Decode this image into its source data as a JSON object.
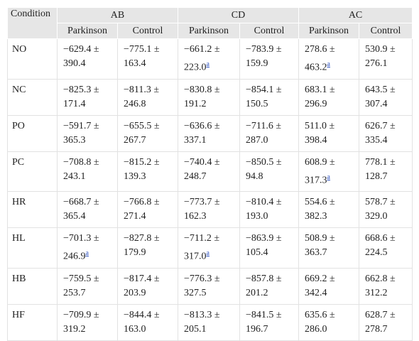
{
  "table": {
    "corner": "Condition",
    "groups": [
      {
        "label": "AB",
        "columns": [
          "Parkinson",
          "Control"
        ]
      },
      {
        "label": "CD",
        "columns": [
          "Parkinson",
          "Control"
        ]
      },
      {
        "label": "AC",
        "columns": [
          "Parkinson",
          "Control"
        ]
      }
    ],
    "rows": [
      {
        "condition": "NO",
        "cells": [
          {
            "text": "−629.4 ± 390.4"
          },
          {
            "text": "−775.1 ± 163.4"
          },
          {
            "text": "−661.2 ± 223.0",
            "sup": "a"
          },
          {
            "text": "−783.9 ± 159.9"
          },
          {
            "text": "278.6 ± 463.2",
            "sup": "a"
          },
          {
            "text": "530.9 ± 276.1"
          }
        ]
      },
      {
        "condition": "NC",
        "cells": [
          {
            "text": "−825.3 ± 171.4"
          },
          {
            "text": "−811.3 ± 246.8"
          },
          {
            "text": "−830.8 ± 191.2"
          },
          {
            "text": "−854.1 ± 150.5"
          },
          {
            "text": "683.1 ± 296.9"
          },
          {
            "text": "643.5 ± 307.4"
          }
        ]
      },
      {
        "condition": "PO",
        "cells": [
          {
            "text": "−591.7 ± 365.3"
          },
          {
            "text": "−655.5 ± 267.7"
          },
          {
            "text": "−636.6 ± 337.1"
          },
          {
            "text": "−711.6 ± 287.0"
          },
          {
            "text": "511.0 ± 398.4"
          },
          {
            "text": "626.7 ± 335.4"
          }
        ]
      },
      {
        "condition": "PC",
        "cells": [
          {
            "text": "−708.8 ± 243.1"
          },
          {
            "text": "−815.2 ± 139.3"
          },
          {
            "text": "−740.4 ± 248.7"
          },
          {
            "text": "−850.5 ± 94.8"
          },
          {
            "text": "608.9 ± 317.3",
            "sup": "a"
          },
          {
            "text": "778.1 ± 128.7"
          }
        ]
      },
      {
        "condition": "HR",
        "cells": [
          {
            "text": "−668.7 ± 365.4"
          },
          {
            "text": "−766.8 ± 271.4"
          },
          {
            "text": "−773.7 ± 162.3"
          },
          {
            "text": "−810.4 ± 193.0"
          },
          {
            "text": "554.6 ± 382.3"
          },
          {
            "text": "578.7 ± 329.0"
          }
        ]
      },
      {
        "condition": "HL",
        "cells": [
          {
            "text": "−701.3 ± 246.9",
            "sup": "a"
          },
          {
            "text": "−827.8 ± 179.9"
          },
          {
            "text": "−711.2 ± 317.0",
            "sup": "a"
          },
          {
            "text": "−863.9 ± 105.4"
          },
          {
            "text": "508.9 ± 363.7"
          },
          {
            "text": "668.6 ± 224.5"
          }
        ]
      },
      {
        "condition": "HB",
        "cells": [
          {
            "text": "−759.5 ± 253.7"
          },
          {
            "text": "−817.4 ± 203.9"
          },
          {
            "text": "−776.3 ± 327.5"
          },
          {
            "text": "−857.8 ± 201.2"
          },
          {
            "text": "669.2 ± 342.4"
          },
          {
            "text": "662.8 ± 312.2"
          }
        ]
      },
      {
        "condition": "HF",
        "cells": [
          {
            "text": "−709.9 ± 319.2"
          },
          {
            "text": "−844.4 ± 163.0"
          },
          {
            "text": "−813.3 ± 205.1"
          },
          {
            "text": "−841.5 ± 196.7"
          },
          {
            "text": "635.6 ± 286.0"
          },
          {
            "text": "628.7 ± 278.7"
          }
        ]
      }
    ]
  }
}
